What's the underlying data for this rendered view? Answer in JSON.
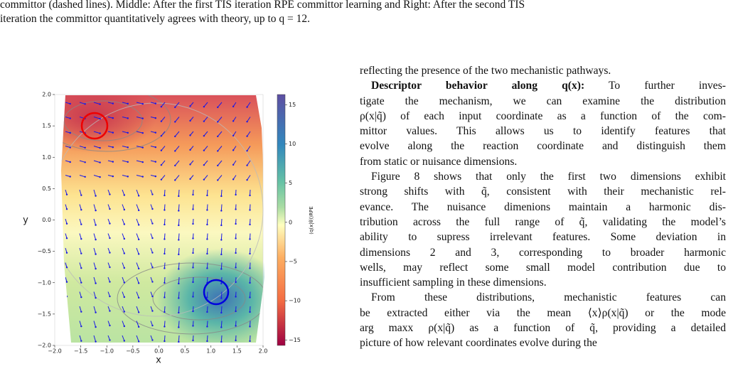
{
  "caption": {
    "lines": [
      "committor (dashed lines). Middle: After the first TIS iteration RPE committor learning and Right: After the second TIS",
      "iteration the committor quantitatively agrees with theory, up to q = 12."
    ]
  },
  "figure": {
    "type": "heatmap",
    "xlabel": "x",
    "ylabel": "y",
    "colorbar_label": "⟨q(x|θ)⟩RPE",
    "xlim": [
      -2,
      2
    ],
    "ylim": [
      -2,
      2
    ],
    "xticks": [
      {
        "value": -2,
        "label": "−2.0"
      },
      {
        "value": -1.5,
        "label": "−1.5"
      },
      {
        "value": -1,
        "label": "−1.0"
      },
      {
        "value": -0.5,
        "label": "−0.5"
      },
      {
        "value": 0,
        "label": "0.0"
      },
      {
        "value": 0.5,
        "label": "0.5"
      },
      {
        "value": 1,
        "label": "1.0"
      },
      {
        "value": 1.5,
        "label": "1.5"
      },
      {
        "value": 2,
        "label": "2.0"
      }
    ],
    "yticks": [
      {
        "value": -2,
        "label": "−2.0"
      },
      {
        "value": -1.5,
        "label": "−1.5"
      },
      {
        "value": -1,
        "label": "−1.0"
      },
      {
        "value": -0.5,
        "label": "−0.5"
      },
      {
        "value": 0,
        "label": "0.0"
      },
      {
        "value": 0.5,
        "label": "0.5"
      },
      {
        "value": 1,
        "label": "1.0"
      },
      {
        "value": 1.5,
        "label": "1.5"
      },
      {
        "value": 2,
        "label": "2.0"
      }
    ],
    "clim": [
      -15.7,
      16.3
    ],
    "cticks": [
      15,
      10,
      5,
      0,
      {
        "value": -5,
        "label": "−5"
      },
      {
        "value": -10,
        "label": "−10"
      },
      {
        "value": -15,
        "label": "−15"
      }
    ]
  },
  "body": {
    "p1": [
      "reflecting the presence of the two mechanistic pathways."
    ],
    "heading": "Descriptor behavior along q(x):",
    "p2": [
      " To further inves-",
      "tigate the mechanism, we can examine the distribution",
      "ρ(x|q̃) of each input coordinate as a function of the com-",
      "mittor values. This allows us to identify features that",
      "evolve along the reaction coordinate and distinguish them",
      "from static or nuisance dimensions."
    ],
    "p3": [
      "Figure 8 shows that only the first two dimensions exhibit",
      "strong shifts with q̃, consistent with their mechanistic rel-",
      "evance. The nuisance dimenions maintain a harmonic dis-",
      "tribution across the full range of q̃, validating the model’s",
      "ability to supress irrelevant features. Some deviation in",
      "dimensions 2 and 3, corresponding to broader harmonic",
      "wells, may reflect some small model contribution due to",
      "insufficient sampling in these dimensions."
    ],
    "p4": [
      "From these distributions, mechanistic features can",
      "be extracted either via the mean ⟨x⟩ρ(x|q̃) or the mode",
      "arg maxx ρ(x|q̃) as a function of q̃, providing a detailed",
      "picture of how relevant coordinates evolve during the"
    ]
  }
}
